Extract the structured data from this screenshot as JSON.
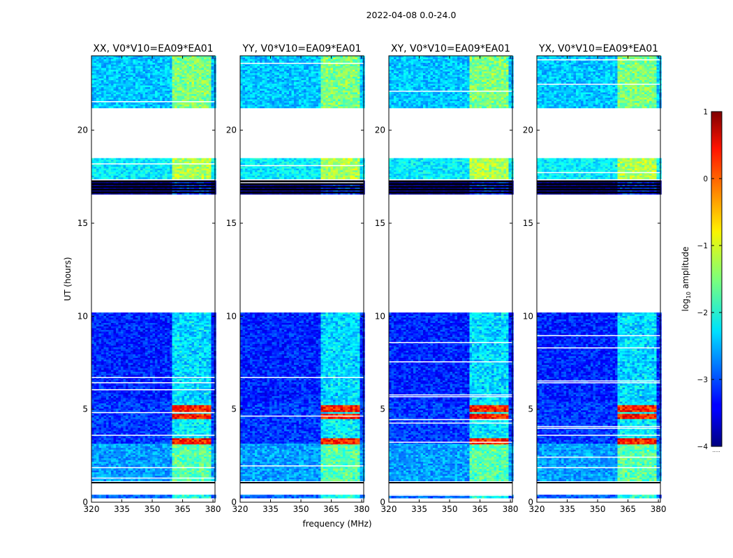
{
  "chart_data": {
    "type": "heatmap",
    "suptitle": "2022-04-08 0.0-24.0",
    "xlabel": "frequency (MHz)",
    "ylabel": "UT (hours)",
    "xlim": [
      320,
      381
    ],
    "ylim": [
      0,
      24
    ],
    "xticks": [
      "320",
      "335",
      "350",
      "365",
      "380"
    ],
    "xtick_values": [
      320,
      335,
      350,
      365,
      380
    ],
    "yticks": [
      "0",
      "5",
      "10",
      "15",
      "20"
    ],
    "ytick_values": [
      0,
      5,
      10,
      15,
      20
    ],
    "colorbar": {
      "label": "log10 amplitude",
      "label_prefix": "log",
      "label_sub": "10",
      "label_suffix": " amplitude",
      "range": [
        -4,
        1
      ],
      "ticks": [
        "1",
        "0",
        "−1",
        "−2",
        "−3",
        "−4"
      ],
      "tick_values": [
        1,
        0,
        -1,
        -2,
        -3,
        -4
      ],
      "footnote": "....."
    },
    "panels": [
      {
        "title": "XX, V0*V10=EA09*EA01",
        "rfi_start_mhz": 359
      },
      {
        "title": "YY, V0*V10=EA09*EA01",
        "rfi_start_mhz": 359
      },
      {
        "title": "XY, V0*V10=EA09*EA01",
        "rfi_start_mhz": 359
      },
      {
        "title": "YX, V0*V10=EA09*EA01",
        "rfi_start_mhz": 359
      }
    ],
    "data_segments": [
      {
        "ut_start": 0.25,
        "ut_end": 0.4,
        "base_log_amp": -2.9
      },
      {
        "ut_start": 1.2,
        "ut_end": 3.2,
        "base_log_amp": -2.6
      },
      {
        "ut_start": 3.2,
        "ut_end": 5.5,
        "base_log_amp": -3.1
      },
      {
        "ut_start": 5.5,
        "ut_end": 10.2,
        "base_log_amp": -3.2
      },
      {
        "ut_start": 16.6,
        "ut_end": 17.3,
        "base_log_amp": -4.0
      },
      {
        "ut_start": 17.4,
        "ut_end": 18.5,
        "base_log_amp": -2.2
      },
      {
        "ut_start": 21.2,
        "ut_end": 24.0,
        "base_log_amp": -2.4
      }
    ],
    "rfi_channels_mhz": [
      359,
      363,
      364,
      368,
      369,
      372,
      373,
      377
    ],
    "strong_rfi_ut_ranges": [
      [
        3.2,
        3.5
      ],
      [
        4.5,
        4.8
      ],
      [
        4.9,
        5.3
      ]
    ]
  }
}
